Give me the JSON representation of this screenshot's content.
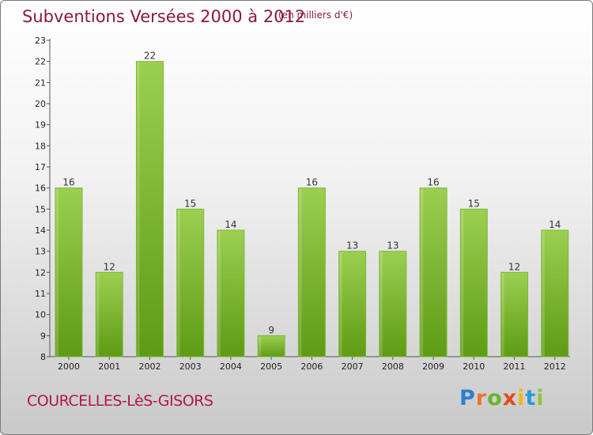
{
  "header": {
    "title": "Subventions Versées 2000 à 2012",
    "subtitle": "(en milliers d'€)"
  },
  "footer": {
    "commune": "COURCELLES-LèS-GISORS",
    "logo_letters": [
      "P",
      "r",
      "o",
      "x",
      "i",
      "t",
      "i"
    ]
  },
  "colors": {
    "bar_top": "#9ccf50",
    "bar_bottom": "#5e9b14",
    "title": "#8a1a3c",
    "commune": "#b0174e"
  },
  "chart_data": {
    "type": "bar",
    "title": "Subventions Versées 2000 à 2012",
    "subtitle": "(en milliers d'€)",
    "categories": [
      "2000",
      "2001",
      "2002",
      "2003",
      "2004",
      "2005",
      "2006",
      "2007",
      "2008",
      "2009",
      "2010",
      "2011",
      "2012"
    ],
    "values": [
      16,
      12,
      22,
      15,
      14,
      9,
      16,
      13,
      13,
      16,
      15,
      12,
      14
    ],
    "ylim": [
      8,
      23
    ],
    "yticks": [
      8,
      9,
      10,
      11,
      12,
      13,
      14,
      15,
      16,
      17,
      18,
      19,
      20,
      21,
      22,
      23
    ],
    "grid": false,
    "legend": "none"
  }
}
